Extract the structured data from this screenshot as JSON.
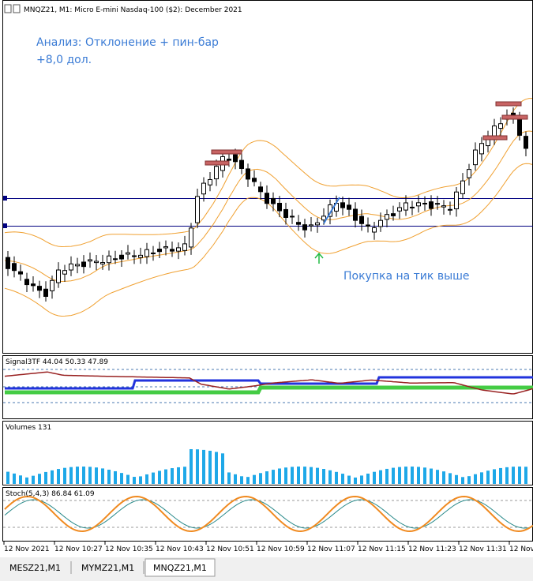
{
  "header": {
    "title": "MNQZ21, M1:  Micro E-mini Nasdaq-100 ($2): December 2021"
  },
  "annotations": [
    "Анализ: Отклонение + пин-бар",
    "+8,0 дол.",
    "Покупка на тик выше"
  ],
  "panels": [
    {
      "label": "Signal3TF 44.04 50.33 47.89"
    },
    {
      "label": "Volumes 131"
    },
    {
      "label": "Stoch(5,4,3) 86.84 61.09"
    }
  ],
  "time_labels": [
    "12 Nov 2021",
    "12 Nov 10:27",
    "12 Nov 10:35",
    "12 Nov 10:43",
    "12 Nov 10:51",
    "12 Nov 10:59",
    "12 Nov 11:07",
    "12 Nov 11:15",
    "12 Nov 11:23",
    "12 Nov 11:31",
    "12 Nov"
  ],
  "tabs": [
    "MESZ21,M1",
    "MYMZ21,M1",
    "MNQZ21,M1"
  ]
}
